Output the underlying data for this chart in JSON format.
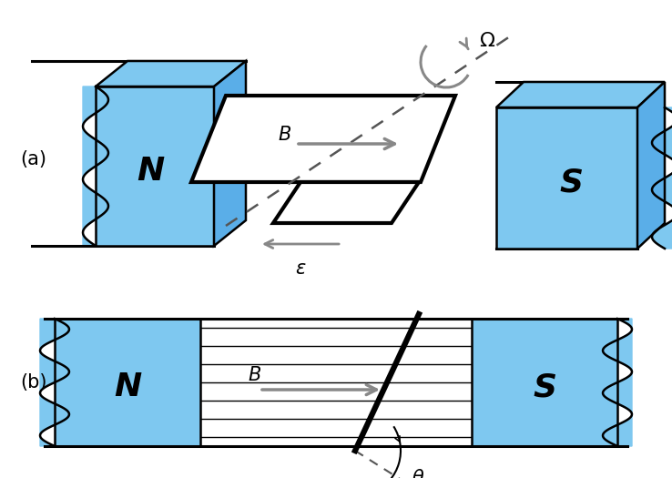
{
  "blue": "#7ec8f0",
  "blue_dark": "#5aaee8",
  "black": "#000000",
  "gray": "#888888",
  "dark_gray": "#555555",
  "white": "#ffffff",
  "label_a": "(a)",
  "label_b": "(b)",
  "N_label": "N",
  "S_label": "S",
  "B_label": "$B$",
  "omega_label": "$\\Omega$",
  "epsilon_label": "$\\varepsilon$",
  "theta_label": "$\\theta$",
  "figw": 7.38,
  "figh": 5.25,
  "dpi": 100
}
